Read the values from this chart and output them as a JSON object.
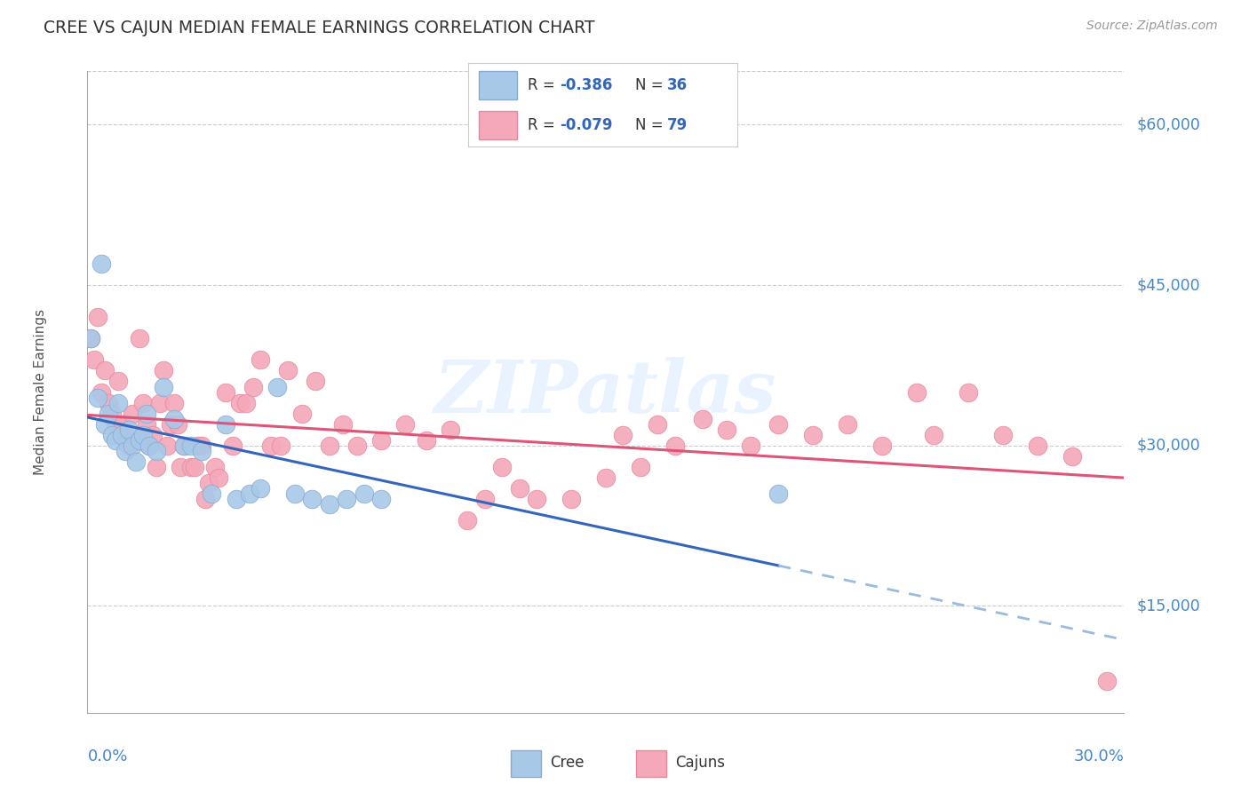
{
  "title": "CREE VS CAJUN MEDIAN FEMALE EARNINGS CORRELATION CHART",
  "source": "Source: ZipAtlas.com",
  "ylabel": "Median Female Earnings",
  "y_ticks": [
    15000,
    30000,
    45000,
    60000
  ],
  "y_tick_labels": [
    "$15,000",
    "$30,000",
    "$45,000",
    "$60,000"
  ],
  "x_min": 0.0,
  "x_max": 0.3,
  "y_min": 5000,
  "y_max": 65000,
  "cree_R": -0.386,
  "cree_N": 36,
  "cajun_R": -0.079,
  "cajun_N": 79,
  "cree_color": "#a8c8e8",
  "cajun_color": "#f4a8b8",
  "cree_edge_color": "#88aad0",
  "cajun_edge_color": "#e888a0",
  "cree_line_color": "#3366bb",
  "cajun_line_color": "#dd5577",
  "dashed_line_color": "#99bbdd",
  "watermark_color": "#ddeeff",
  "background_color": "#ffffff",
  "grid_color": "#cccccc",
  "title_color": "#333333",
  "axis_label_color": "#4488cc",
  "legend_r_color": "#3366bb",
  "legend_n_color": "#3366bb",
  "cree_points_x": [
    0.001,
    0.003,
    0.004,
    0.005,
    0.006,
    0.007,
    0.008,
    0.009,
    0.01,
    0.011,
    0.012,
    0.013,
    0.014,
    0.015,
    0.016,
    0.017,
    0.018,
    0.02,
    0.022,
    0.025,
    0.028,
    0.03,
    0.033,
    0.036,
    0.04,
    0.043,
    0.047,
    0.05,
    0.055,
    0.06,
    0.065,
    0.07,
    0.075,
    0.08,
    0.085,
    0.2
  ],
  "cree_points_y": [
    40000,
    34500,
    47000,
    32000,
    33000,
    31000,
    30500,
    34000,
    31000,
    29500,
    31500,
    30000,
    28500,
    30500,
    31000,
    33000,
    30000,
    29500,
    35500,
    32500,
    30000,
    30000,
    29500,
    25500,
    32000,
    25000,
    25500,
    26000,
    35500,
    25500,
    25000,
    24500,
    25000,
    25500,
    25000,
    25500
  ],
  "cajun_points_x": [
    0.001,
    0.002,
    0.003,
    0.004,
    0.005,
    0.006,
    0.007,
    0.008,
    0.009,
    0.01,
    0.011,
    0.012,
    0.013,
    0.014,
    0.015,
    0.016,
    0.017,
    0.018,
    0.019,
    0.02,
    0.021,
    0.022,
    0.023,
    0.024,
    0.025,
    0.026,
    0.027,
    0.028,
    0.03,
    0.031,
    0.032,
    0.033,
    0.034,
    0.035,
    0.037,
    0.038,
    0.04,
    0.042,
    0.044,
    0.046,
    0.048,
    0.05,
    0.053,
    0.056,
    0.058,
    0.062,
    0.066,
    0.07,
    0.074,
    0.078,
    0.085,
    0.092,
    0.098,
    0.105,
    0.11,
    0.115,
    0.12,
    0.125,
    0.13,
    0.14,
    0.15,
    0.155,
    0.16,
    0.165,
    0.17,
    0.178,
    0.185,
    0.192,
    0.2,
    0.21,
    0.22,
    0.23,
    0.24,
    0.245,
    0.255,
    0.265,
    0.275,
    0.285,
    0.295
  ],
  "cajun_points_y": [
    40000,
    38000,
    42000,
    35000,
    37000,
    34000,
    33000,
    32000,
    36000,
    32000,
    31000,
    30000,
    33000,
    30500,
    40000,
    34000,
    32000,
    30000,
    31000,
    28000,
    34000,
    37000,
    30000,
    32000,
    34000,
    32000,
    28000,
    30000,
    28000,
    28000,
    30000,
    30000,
    25000,
    26500,
    28000,
    27000,
    35000,
    30000,
    34000,
    34000,
    35500,
    38000,
    30000,
    30000,
    37000,
    33000,
    36000,
    30000,
    32000,
    30000,
    30500,
    32000,
    30500,
    31500,
    23000,
    25000,
    28000,
    26000,
    25000,
    25000,
    27000,
    31000,
    28000,
    32000,
    30000,
    32500,
    31500,
    30000,
    32000,
    31000,
    32000,
    30000,
    35000,
    31000,
    35000,
    31000,
    30000,
    29000,
    8000
  ]
}
